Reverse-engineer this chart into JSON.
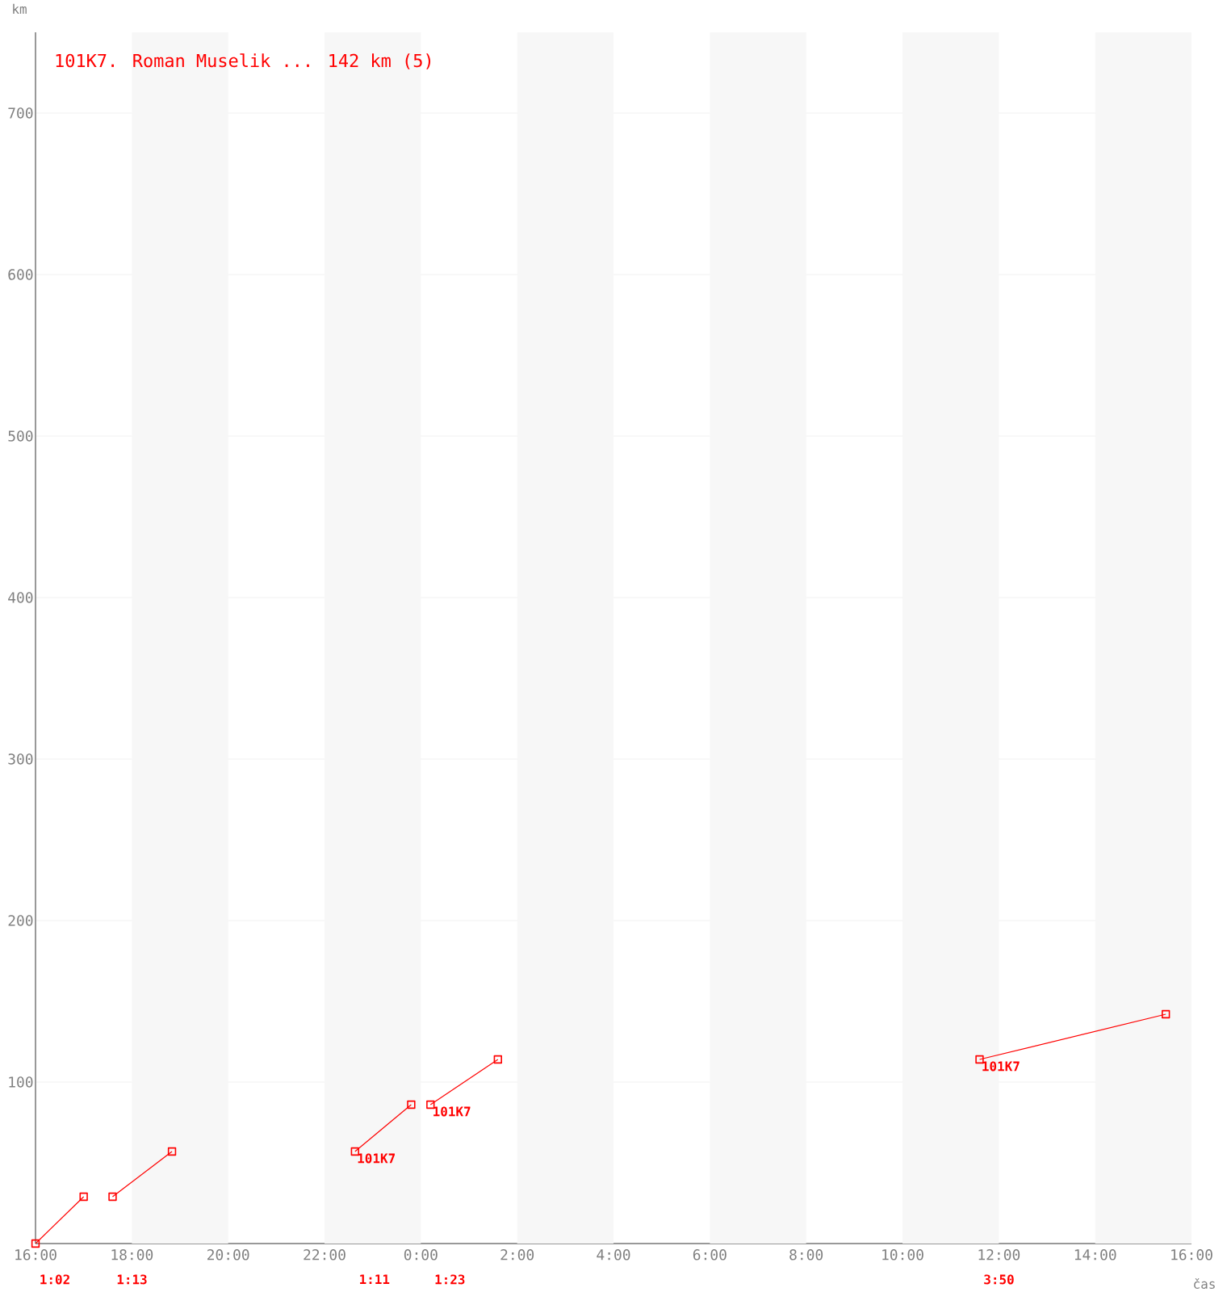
{
  "chart_data": {
    "type": "line",
    "title": "101K7. Roman Muselik ... 142 km (5)",
    "xlabel": "čas",
    "ylabel": "km",
    "series": [
      {
        "color": "#ff0000",
        "x": [
          "2000-01-01T16:00",
          "2000-01-01T17:00"
        ],
        "values": [
          0,
          29
        ]
      },
      {
        "color": "#ff0000",
        "x": [
          "2000-01-01T17:36",
          "2000-01-01T18:50"
        ],
        "values": [
          29,
          57
        ]
      },
      {
        "color": "#ff0000",
        "x": [
          "2000-01-01T22:38",
          "2000-01-01T23:48"
        ],
        "values": [
          57,
          86
        ]
      },
      {
        "color": "#ff0000",
        "x": [
          "2000-01-02T00:12",
          "2000-01-02T01:36"
        ],
        "values": [
          86,
          114
        ]
      },
      {
        "color": "#ff0000",
        "x": [
          "2000-01-02T11:36",
          "2000-01-02T15:28"
        ],
        "values": [
          114,
          142
        ]
      }
    ],
    "marker": "square",
    "line_style": "solid",
    "grid": "y",
    "xlim": [
      "2000-01-01T16:00",
      "2000-01-02T16:00"
    ],
    "ylim": [
      0,
      750
    ],
    "xticks": [
      {
        "value": "2000-01-01T16:00",
        "label": "16:00"
      },
      {
        "value": "2000-01-01T18:00",
        "label": "18:00"
      },
      {
        "value": "2000-01-01T20:00",
        "label": "20:00"
      },
      {
        "value": "2000-01-01T22:00",
        "label": "22:00"
      },
      {
        "value": "2000-01-02T00:00",
        "label": "0:00"
      },
      {
        "value": "2000-01-02T02:00",
        "label": "2:00"
      },
      {
        "value": "2000-01-02T04:00",
        "label": "4:00"
      },
      {
        "value": "2000-01-02T06:00",
        "label": "6:00"
      },
      {
        "value": "2000-01-02T08:00",
        "label": "8:00"
      },
      {
        "value": "2000-01-02T10:00",
        "label": "10:00"
      },
      {
        "value": "2000-01-02T12:00",
        "label": "12:00"
      },
      {
        "value": "2000-01-02T14:00",
        "label": "14:00"
      },
      {
        "value": "2000-01-02T16:00",
        "label": "16:00"
      }
    ],
    "yticks": [
      100,
      200,
      300,
      400,
      500,
      600,
      700
    ],
    "bands": [
      {
        "axis": "x",
        "from": "2000-01-01T18:00",
        "to": "2000-01-01T20:00",
        "color": "#f7f7f7"
      },
      {
        "axis": "x",
        "from": "2000-01-01T22:00",
        "to": "2000-01-02T00:00",
        "color": "#f7f7f7"
      },
      {
        "axis": "x",
        "from": "2000-01-02T02:00",
        "to": "2000-01-02T04:00",
        "color": "#f7f7f7"
      },
      {
        "axis": "x",
        "from": "2000-01-02T06:00",
        "to": "2000-01-02T08:00",
        "color": "#f7f7f7"
      },
      {
        "axis": "x",
        "from": "2000-01-02T10:00",
        "to": "2000-01-02T12:00",
        "color": "#f7f7f7"
      },
      {
        "axis": "x",
        "from": "2000-01-02T14:00",
        "to": "2000-01-02T16:00",
        "color": "#f7f7f7"
      }
    ],
    "annotations": [
      {
        "text": "101K7",
        "x": "2000-01-01T22:38",
        "y": 57
      },
      {
        "text": "101K7",
        "x": "2000-01-02T00:12",
        "y": 86
      },
      {
        "text": "101K7",
        "x": "2000-01-02T11:36",
        "y": 114
      },
      "1:02",
      "1:13",
      "1:11",
      "1:23",
      "3:50"
    ]
  }
}
